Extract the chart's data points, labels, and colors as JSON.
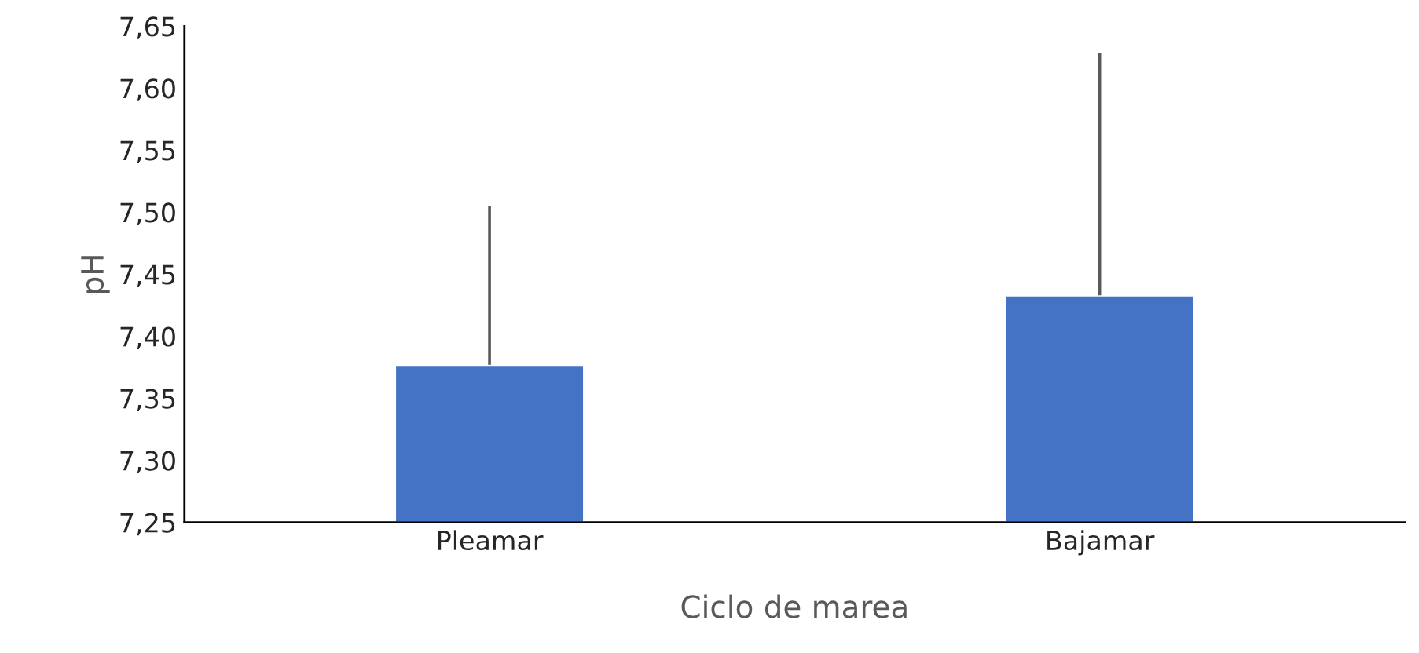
{
  "chart_data": {
    "type": "bar",
    "xlabel": "Ciclo de marea",
    "ylabel": "pH",
    "categories": [
      "Pleamar",
      "Bajamar"
    ],
    "values": [
      7.377,
      7.433
    ],
    "errors": [
      [
        7.377,
        7.505
      ],
      [
        7.433,
        7.628
      ]
    ],
    "color": "#4472c4",
    "ylim": [
      7.25,
      7.65
    ],
    "yticks": [
      {
        "value": 7.25,
        "label": "7,25"
      },
      {
        "value": 7.3,
        "label": "7,30"
      },
      {
        "value": 7.35,
        "label": "7,35"
      },
      {
        "value": 7.4,
        "label": "7,40"
      },
      {
        "value": 7.45,
        "label": "7,45"
      },
      {
        "value": 7.5,
        "label": "7,50"
      },
      {
        "value": 7.55,
        "label": "7,55"
      },
      {
        "value": 7.6,
        "label": "7,60"
      },
      {
        "value": 7.65,
        "label": "7,65"
      }
    ],
    "grid": false,
    "legend": false
  }
}
